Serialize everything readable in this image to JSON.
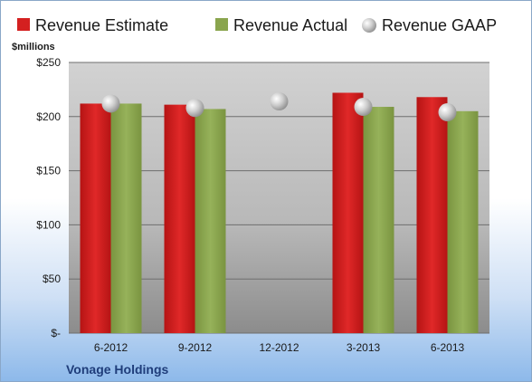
{
  "chart_data": {
    "type": "bar",
    "title": "",
    "unit_label": "$millions",
    "company": "Vonage Holdings",
    "categories": [
      "6-2012",
      "9-2012",
      "12-2012",
      "3-2013",
      "6-2013"
    ],
    "series": [
      {
        "name": "Revenue Estimate",
        "kind": "bar",
        "color": "#d42020",
        "values": [
          212,
          211,
          null,
          222,
          218
        ]
      },
      {
        "name": "Revenue Actual",
        "kind": "bar",
        "color": "#8aa54e",
        "values": [
          212,
          207,
          null,
          209,
          205
        ]
      },
      {
        "name": "Revenue GAAP",
        "kind": "point",
        "color": "#c8c8c8",
        "values": [
          212,
          208,
          214,
          209,
          204
        ]
      }
    ],
    "yticks": [
      0,
      50,
      100,
      150,
      200,
      250
    ],
    "ytick_labels": [
      "$-",
      "$50",
      "$100",
      "$150",
      "$200",
      "$250"
    ],
    "ylim": [
      0,
      250
    ],
    "grid": true,
    "legend_position": "top"
  }
}
